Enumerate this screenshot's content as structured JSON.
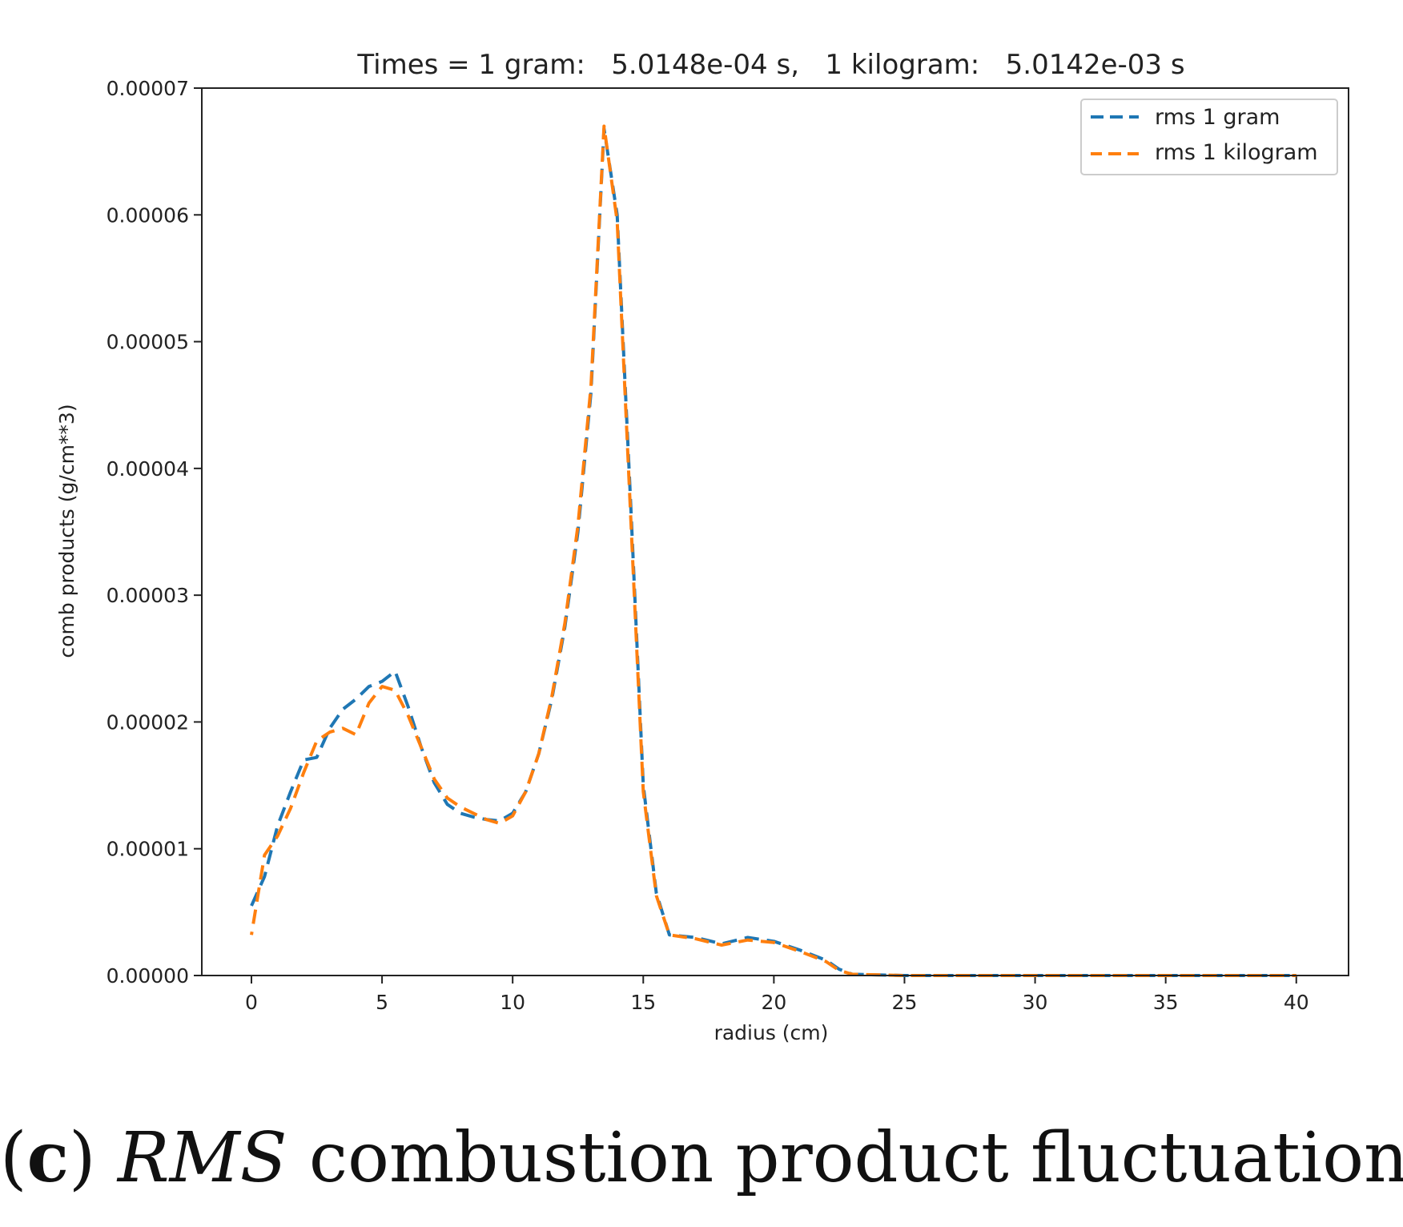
{
  "chart_data": {
    "type": "line",
    "title": "Times = 1 gram:   5.0148e-04 s,   1 kilogram:   5.0142e-03 s",
    "xlabel": "radius (cm)",
    "ylabel": "comb products (g/cm**3)",
    "xlim": [
      -1.9,
      42
    ],
    "ylim": [
      0,
      7e-05
    ],
    "x_ticks": [
      0,
      5,
      10,
      15,
      20,
      25,
      30,
      35,
      40
    ],
    "x_tick_labels": [
      "0",
      "5",
      "10",
      "15",
      "20",
      "25",
      "30",
      "35",
      "40"
    ],
    "y_ticks": [
      0,
      1e-05,
      2e-05,
      3e-05,
      4e-05,
      5e-05,
      6e-05,
      7e-05
    ],
    "y_tick_labels": [
      "0.00000",
      "0.00001",
      "0.00002",
      "0.00003",
      "0.00004",
      "0.00005",
      "0.00006",
      "0.00007"
    ],
    "grid": false,
    "legend_position": "top-right",
    "series": [
      {
        "name": "rms 1 gram",
        "color": "#1f77b4",
        "style": "dashed",
        "x": [
          0,
          0.5,
          1,
          1.5,
          2,
          2.5,
          3,
          3.5,
          4,
          4.5,
          5,
          5.5,
          6,
          6.5,
          7,
          7.5,
          8,
          8.5,
          9,
          9.5,
          10,
          10.5,
          11,
          11.5,
          12,
          12.5,
          13,
          13.5,
          14,
          14.5,
          15,
          15.5,
          16,
          17,
          18,
          19,
          20,
          21,
          22,
          22.5,
          23,
          25,
          30,
          35,
          40
        ],
        "y": [
          5.5e-06,
          7.8e-06,
          1.18e-05,
          1.45e-05,
          1.7e-05,
          1.72e-05,
          1.95e-05,
          2.1e-05,
          2.18e-05,
          2.28e-05,
          2.32e-05,
          2.4e-05,
          2.12e-05,
          1.8e-05,
          1.52e-05,
          1.35e-05,
          1.28e-05,
          1.25e-05,
          1.23e-05,
          1.22e-05,
          1.28e-05,
          1.45e-05,
          1.75e-05,
          2.18e-05,
          2.75e-05,
          3.5e-05,
          4.6e-05,
          6.68e-05,
          6e-05,
          3.8e-05,
          1.5e-05,
          6.5e-06,
          3.2e-06,
          3e-06,
          2.5e-06,
          3e-06,
          2.7e-06,
          2e-06,
          1.2e-06,
          5e-07,
          1e-07,
          0,
          0,
          0,
          0
        ]
      },
      {
        "name": "rms 1 kilogram",
        "color": "#ff7f0e",
        "style": "dashed",
        "x": [
          0,
          0.5,
          1,
          1.5,
          2,
          2.5,
          3,
          3.5,
          4,
          4.5,
          5,
          5.5,
          6,
          6.5,
          7,
          7.5,
          8,
          8.5,
          9,
          9.5,
          10,
          10.5,
          11,
          11.5,
          12,
          12.5,
          13,
          13.5,
          14,
          14.5,
          15,
          15.5,
          16,
          17,
          18,
          19,
          20,
          21,
          22,
          22.5,
          23,
          25,
          30,
          35,
          40
        ],
        "y": [
          3.2e-06,
          9.5e-06,
          1.1e-05,
          1.32e-05,
          1.6e-05,
          1.85e-05,
          1.92e-05,
          1.95e-05,
          1.9e-05,
          2.15e-05,
          2.28e-05,
          2.25e-05,
          2.05e-05,
          1.8e-05,
          1.55e-05,
          1.4e-05,
          1.33e-05,
          1.28e-05,
          1.23e-05,
          1.2e-05,
          1.26e-05,
          1.45e-05,
          1.75e-05,
          2.2e-05,
          2.78e-05,
          3.55e-05,
          4.65e-05,
          6.7e-05,
          5.95e-05,
          3.7e-05,
          1.45e-05,
          6.3e-06,
          3.2e-06,
          2.9e-06,
          2.4e-06,
          2.8e-06,
          2.6e-06,
          1.9e-06,
          1.1e-06,
          4e-07,
          1e-07,
          0,
          0,
          0,
          0
        ]
      }
    ]
  },
  "caption": {
    "open_paren": "(",
    "letter": "c",
    "close_paren": ")",
    "italic": "RMS",
    "rest": "combustion product fluctuations"
  }
}
